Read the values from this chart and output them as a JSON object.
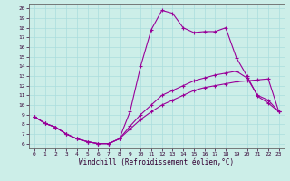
{
  "xlabel": "Windchill (Refroidissement éolien,°C)",
  "bg_color": "#cceee8",
  "line_color": "#990099",
  "grid_color": "#aadddd",
  "xlim": [
    -0.5,
    23.5
  ],
  "ylim": [
    5.5,
    20.5
  ],
  "xticks": [
    0,
    1,
    2,
    3,
    4,
    5,
    6,
    7,
    8,
    9,
    10,
    11,
    12,
    13,
    14,
    15,
    16,
    17,
    18,
    19,
    20,
    21,
    22,
    23
  ],
  "yticks": [
    6,
    7,
    8,
    9,
    10,
    11,
    12,
    13,
    14,
    15,
    16,
    17,
    18,
    19,
    20
  ],
  "line1_x": [
    0,
    1,
    2,
    3,
    4,
    5,
    6,
    7,
    8,
    9,
    10,
    11,
    12,
    13,
    14,
    15,
    16,
    17,
    18,
    19,
    20,
    21,
    22,
    23
  ],
  "line1_y": [
    8.8,
    8.1,
    7.7,
    7.0,
    6.5,
    6.2,
    6.0,
    6.0,
    6.5,
    9.3,
    14.0,
    17.8,
    19.8,
    19.5,
    18.0,
    17.5,
    17.6,
    17.6,
    18.0,
    14.9,
    13.0,
    10.9,
    10.2,
    9.3
  ],
  "line2_x": [
    0,
    1,
    2,
    3,
    4,
    5,
    6,
    7,
    8,
    9,
    10,
    11,
    12,
    13,
    14,
    15,
    16,
    17,
    18,
    19,
    20,
    21,
    22,
    23
  ],
  "line2_y": [
    8.8,
    8.1,
    7.7,
    7.0,
    6.5,
    6.2,
    6.0,
    6.0,
    6.5,
    7.8,
    9.0,
    10.0,
    11.0,
    11.5,
    12.0,
    12.5,
    12.8,
    13.1,
    13.3,
    13.5,
    12.8,
    11.0,
    10.5,
    9.3
  ],
  "line3_x": [
    0,
    1,
    2,
    3,
    4,
    5,
    6,
    7,
    8,
    9,
    10,
    11,
    12,
    13,
    14,
    15,
    16,
    17,
    18,
    19,
    20,
    21,
    22,
    23
  ],
  "line3_y": [
    8.8,
    8.1,
    7.7,
    7.0,
    6.5,
    6.2,
    6.0,
    6.0,
    6.5,
    7.5,
    8.5,
    9.3,
    10.0,
    10.5,
    11.0,
    11.5,
    11.8,
    12.0,
    12.2,
    12.4,
    12.5,
    12.6,
    12.7,
    9.3
  ]
}
